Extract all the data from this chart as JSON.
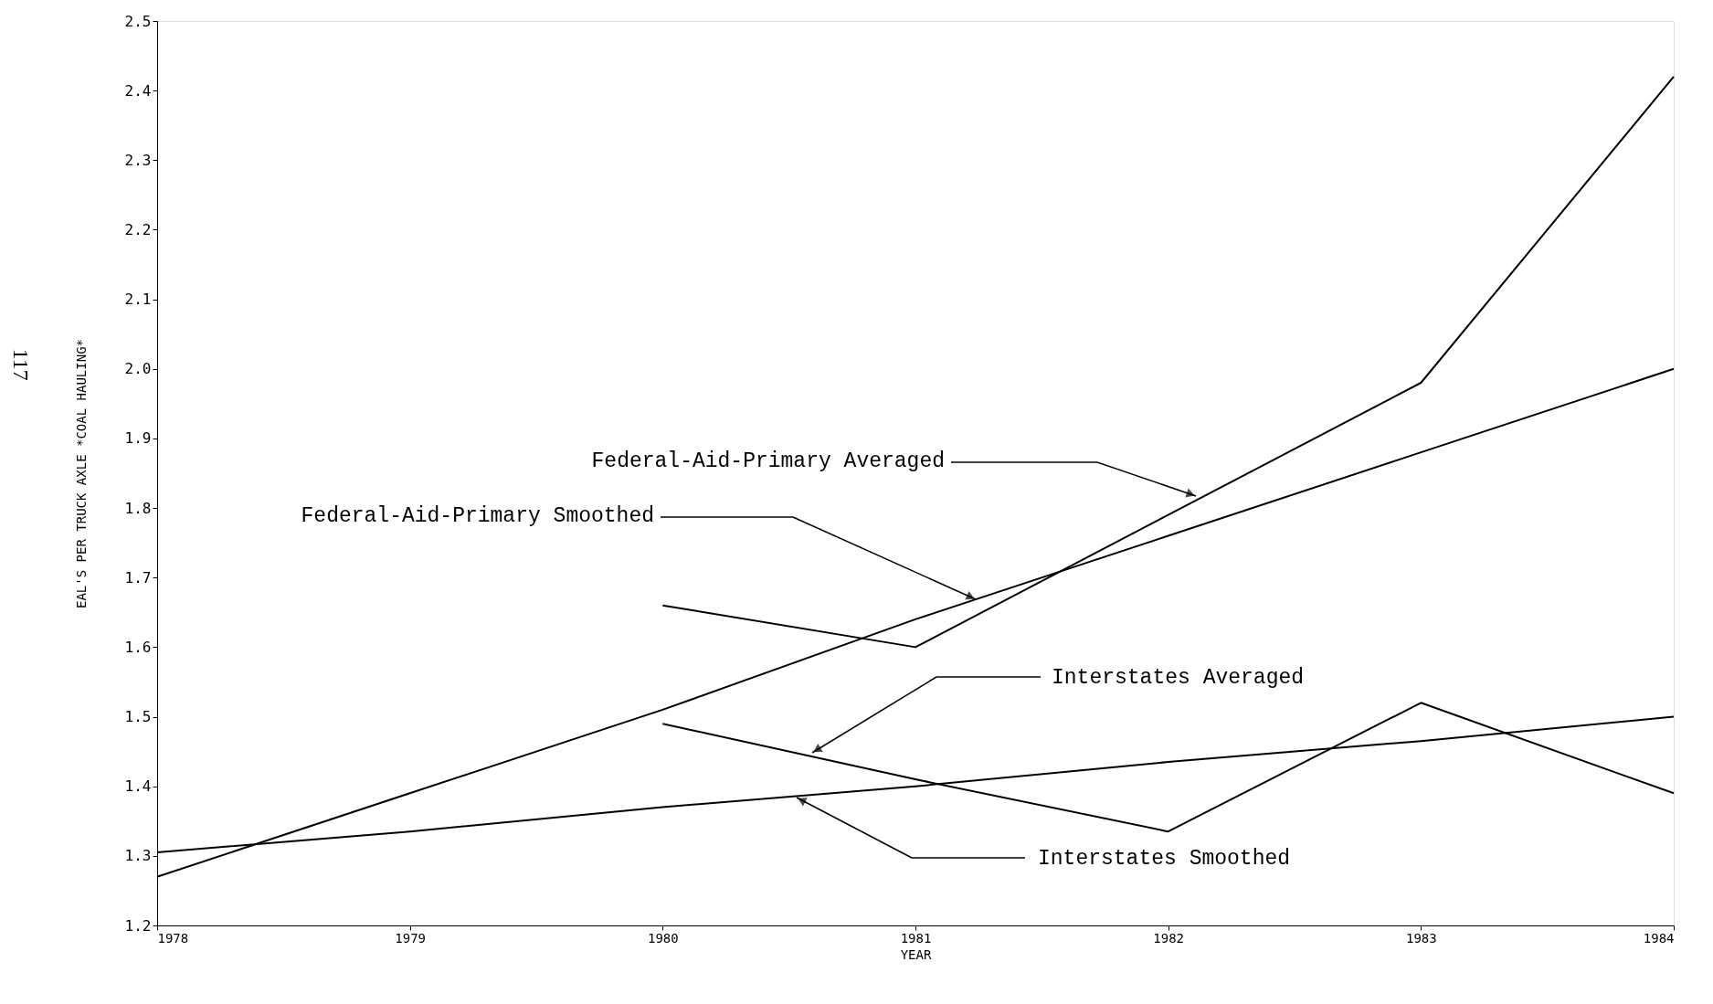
{
  "chart_data": {
    "type": "line",
    "xlabel": "YEAR",
    "ylabel": "EAL'S PER TRUCK AXLE *COAL HAULING*",
    "xlim": [
      1978,
      1984
    ],
    "xticks": [
      1978,
      1979,
      1980,
      1981,
      1982,
      1983,
      1984
    ],
    "ylim": [
      1.2,
      2.5
    ],
    "yticks": [
      1.2,
      1.3,
      1.4,
      1.5,
      1.6,
      1.7,
      1.8,
      1.9,
      {
        "value": 2.0,
        "label": "2.0"
      },
      2.1,
      2.2,
      2.3,
      2.4,
      2.5
    ],
    "grid": false,
    "line_style": "solid",
    "series": [
      {
        "color": "#000000",
        "x": [
          1980,
          1981,
          1983,
          1984
        ],
        "values": [
          1.66,
          1.6,
          1.98,
          2.42
        ]
      },
      {
        "color": "#000000",
        "x": [
          1978,
          1979,
          1980,
          1981,
          1982,
          1983,
          1984
        ],
        "values": [
          1.27,
          1.39,
          1.51,
          1.64,
          1.76,
          1.88,
          2.0
        ]
      },
      {
        "color": "#000000",
        "x": [
          1980,
          1981,
          1982,
          1983,
          1984
        ],
        "values": [
          1.49,
          1.41,
          1.335,
          1.52,
          1.39
        ]
      },
      {
        "color": "#000000",
        "x": [
          1978,
          1979,
          1980,
          1981,
          1982,
          1983,
          1984
        ],
        "values": [
          1.305,
          1.335,
          1.37,
          1.4,
          1.435,
          1.465,
          1.5
        ]
      }
    ],
    "annotations": [
      "Federal-Aid-Primary Averaged",
      "Federal-Aid-Primary Smoothed",
      "Interstates Averaged",
      "Interstates Smoothed",
      "117"
    ]
  }
}
